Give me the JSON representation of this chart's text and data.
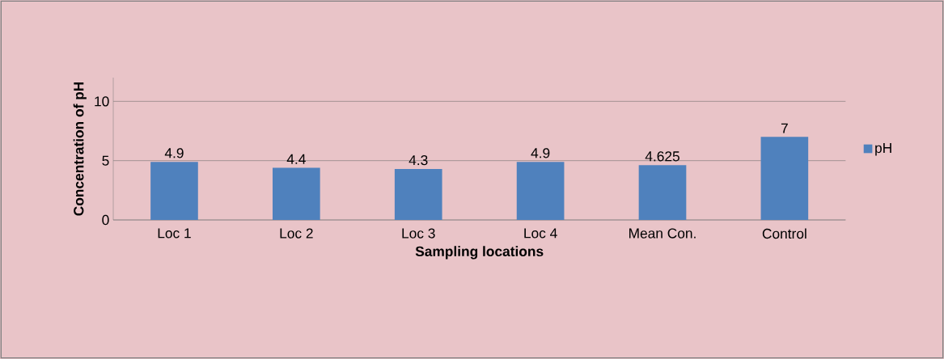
{
  "chart_data": {
    "type": "bar",
    "xlabel": "Sampling locations",
    "ylabel": "Concentration of pH",
    "categories": [
      "Loc 1",
      "Loc 2",
      "Loc 3",
      "Loc  4",
      "Mean Con.",
      "Control"
    ],
    "series": [
      {
        "name": "pH",
        "color": "#4f81bd",
        "values": [
          4.9,
          4.4,
          4.3,
          4.9,
          4.625,
          7
        ],
        "value_labels": [
          "4.9",
          "4.4",
          "4.3",
          "4.9",
          "4.625",
          "7"
        ]
      }
    ],
    "ylim": [
      0,
      12
    ],
    "yticks": [
      0,
      5,
      10
    ],
    "grid": "y",
    "legend": "right"
  }
}
